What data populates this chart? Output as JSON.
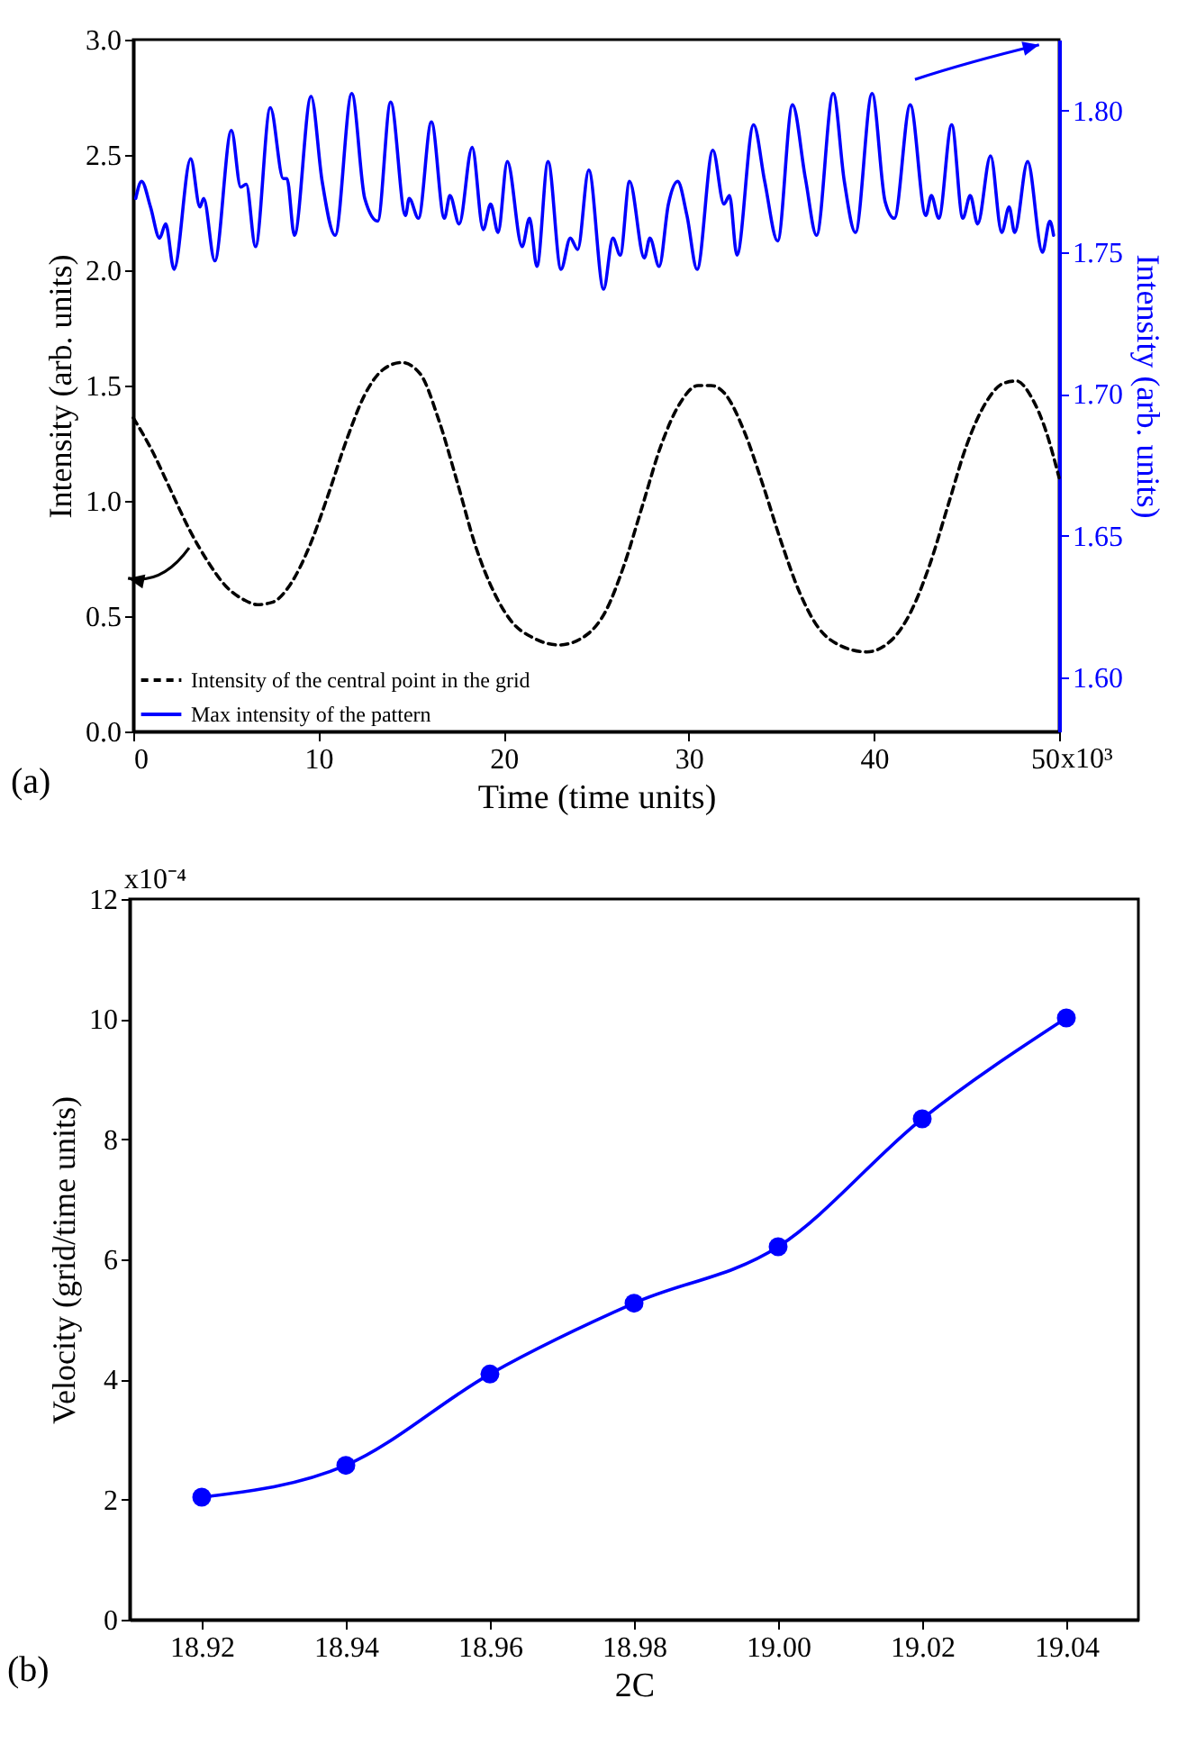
{
  "chart_data": [
    {
      "type": "line",
      "xlabel": "Time (time units)",
      "ylabel": "Intensity (arb. units)",
      "y2label": "Intensity (arb. units)",
      "xlim": [
        0,
        50
      ],
      "xticks": [
        0,
        10,
        20,
        30,
        40,
        50
      ],
      "ylim": [
        0,
        3
      ],
      "yticks": [
        {
          "value": 0,
          "label": "0.0"
        },
        {
          "value": 0.5,
          "label": "0.5"
        },
        {
          "value": 1,
          "label": "1.0"
        },
        {
          "value": 1.5,
          "label": "1.5"
        },
        {
          "value": 2,
          "label": "2.0"
        },
        {
          "value": 2.5,
          "label": "2.5"
        },
        {
          "value": 3,
          "label": "3.0"
        }
      ],
      "y2lim": [
        1.581,
        1.825
      ],
      "y2ticks": [
        {
          "value": 1.6,
          "label": "1.60"
        },
        {
          "value": 1.65,
          "label": "1.65"
        },
        {
          "value": 1.7,
          "label": "1.70"
        },
        {
          "value": 1.75,
          "label": "1.75"
        },
        {
          "value": 1.8,
          "label": "1.80"
        }
      ],
      "legend": "bottom left",
      "annotations": [
        "(a)",
        "x10³"
      ],
      "series": [
        {
          "name": "Intensity of the central point in the grid",
          "color": "#000000",
          "line_style": "dashed",
          "x": [
            0,
            1,
            2,
            3,
            4,
            5,
            6,
            6.7,
            7.5,
            8.5,
            9.5,
            10.5,
            11.5,
            12.5,
            13.5,
            14.5,
            15.5,
            16.5,
            17.5,
            18.5,
            19.5,
            20.5,
            21.5,
            23,
            24.5,
            25.5,
            26.5,
            27.5,
            28.5,
            29.5,
            30.5,
            31.2,
            32,
            33,
            34,
            35,
            36,
            37,
            38,
            39.6,
            41,
            42,
            43,
            44,
            45,
            46,
            47,
            47.7,
            48.5,
            49.3,
            50
          ],
          "values": [
            1.36,
            1.22,
            1.05,
            0.88,
            0.74,
            0.63,
            0.57,
            0.55,
            0.56,
            0.64,
            0.8,
            1.02,
            1.26,
            1.46,
            1.57,
            1.6,
            1.55,
            1.35,
            1.08,
            0.8,
            0.6,
            0.47,
            0.41,
            0.375,
            0.42,
            0.52,
            0.72,
            0.98,
            1.24,
            1.42,
            1.5,
            1.5,
            1.46,
            1.3,
            1.07,
            0.82,
            0.6,
            0.45,
            0.38,
            0.345,
            0.4,
            0.52,
            0.72,
            0.98,
            1.24,
            1.42,
            1.51,
            1.52,
            1.45,
            1.3,
            1.1
          ]
        },
        {
          "name": "Max intensity of the pattern",
          "color": "#0000ff",
          "axis": "y2",
          "line_style": "solid",
          "x": [
            0.13,
            0.45,
            0.93,
            1.42,
            1.75,
            2.2,
            3.1,
            3.6,
            3.8,
            4.4,
            5.3,
            5.8,
            6.1,
            6.6,
            7.4,
            8.1,
            8.3,
            8.7,
            9.6,
            10.2,
            10.9,
            11.8,
            12.5,
            13.2,
            13.9,
            14.7,
            14.9,
            15.4,
            16.1,
            16.8,
            17.1,
            17.6,
            18.3,
            18.9,
            19.3,
            19.7,
            20.2,
            21,
            21.4,
            21.8,
            22.4,
            23.1,
            23.6,
            24,
            24.6,
            25.4,
            25.9,
            26.3,
            26.8,
            27.6,
            27.9,
            28.4,
            28.9,
            29.4,
            29.9,
            30.45,
            31.3,
            31.9,
            32.2,
            32.6,
            33.5,
            34.1,
            34.8,
            35.6,
            36.3,
            36.9,
            37.8,
            38.4,
            39,
            39.9,
            40.6,
            41.1,
            41.96,
            42.8,
            43.1,
            43.5,
            44.2,
            44.8,
            45.2,
            45.6,
            46.3,
            46.9,
            47.3,
            47.6,
            48.3,
            49.1,
            49.5,
            49.7
          ],
          "values": [
            1.769,
            1.775,
            1.766,
            1.755,
            1.76,
            1.744,
            1.783,
            1.766,
            1.769,
            1.747,
            1.793,
            1.773,
            1.774,
            1.752,
            1.801,
            1.776,
            1.776,
            1.756,
            1.805,
            1.775,
            1.756,
            1.806,
            1.769,
            1.761,
            1.803,
            1.763,
            1.769,
            1.762,
            1.796,
            1.762,
            1.77,
            1.76,
            1.787,
            1.758,
            1.767,
            1.757,
            1.782,
            1.752,
            1.762,
            1.745,
            1.782,
            1.744,
            1.755,
            1.751,
            1.779,
            1.737,
            1.755,
            1.749,
            1.775,
            1.748,
            1.755,
            1.745,
            1.767,
            1.775,
            1.763,
            1.744,
            1.786,
            1.767,
            1.77,
            1.749,
            1.795,
            1.775,
            1.754,
            1.802,
            1.776,
            1.756,
            1.806,
            1.775,
            1.757,
            1.806,
            1.768,
            1.762,
            1.802,
            1.763,
            1.77,
            1.762,
            1.795,
            1.762,
            1.77,
            1.76,
            1.784,
            1.757,
            1.766,
            1.757,
            1.782,
            1.75,
            1.761,
            1.756
          ]
        }
      ]
    },
    {
      "type": "line",
      "xlabel": "2C",
      "ylabel": "Velocity (grid/time units)",
      "xlim": [
        18.91,
        19.05
      ],
      "xticks": [
        18.92,
        18.94,
        18.96,
        18.98,
        {
          "value": 19,
          "label": "19.00"
        },
        19.02,
        19.04
      ],
      "ylim": [
        0,
        12
      ],
      "yticks": [
        0,
        2,
        4,
        6,
        8,
        10,
        12
      ],
      "marker": "circle",
      "annotations": [
        "(b)",
        "x10⁻⁴"
      ],
      "series": [
        {
          "color": "#0000ff",
          "x": [
            18.92,
            18.94,
            18.96,
            18.98,
            19,
            19.02,
            19.04
          ],
          "values": [
            2.04,
            2.57,
            4.09,
            5.27,
            6.21,
            8.34,
            10.02
          ]
        }
      ]
    }
  ]
}
